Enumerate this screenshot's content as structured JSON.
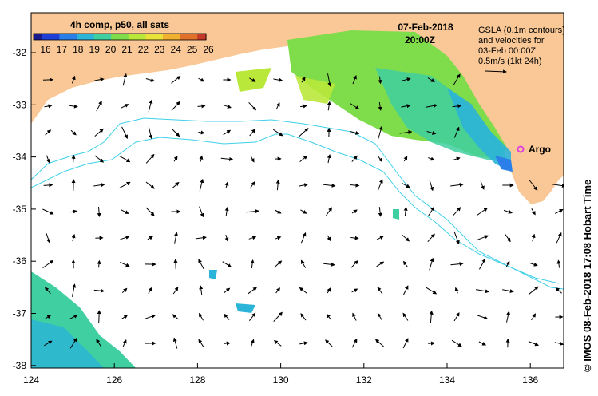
{
  "colorbar": {
    "title": "4h comp, p50, all sats",
    "ticks": [
      "16",
      "17",
      "18",
      "19",
      "20",
      "21",
      "22",
      "23",
      "24",
      "25",
      "26"
    ],
    "colors": [
      "#1a1a8c",
      "#1f3fd6",
      "#2a7fe8",
      "#2cb3d8",
      "#3fcfa0",
      "#7fdc4a",
      "#b9e83a",
      "#e8e23a",
      "#f0b030",
      "#e0702a",
      "#c43a2a"
    ]
  },
  "header": {
    "date": "07-Feb-2018",
    "time": "20:00Z"
  },
  "legend": {
    "line1": "GSLA (0.1m contours)",
    "line2": "and velocities for",
    "line3": "03-Feb 00:00Z",
    "line4": "0.5m/s (1kt 24h)"
  },
  "marker": {
    "label": "Argo",
    "color": "#e040e0"
  },
  "credit": "© IMOS 08-Feb-2018 17:08 Hobart Time",
  "axes": {
    "x_ticks": [
      "124",
      "126",
      "128",
      "130",
      "132",
      "134",
      "136"
    ],
    "y_ticks": [
      "-32",
      "-33",
      "-34",
      "-35",
      "-36",
      "-37",
      "-38"
    ]
  },
  "colors": {
    "land": "#f9c896",
    "ocean": "#ffffff",
    "contour": "#3fd0e8"
  }
}
